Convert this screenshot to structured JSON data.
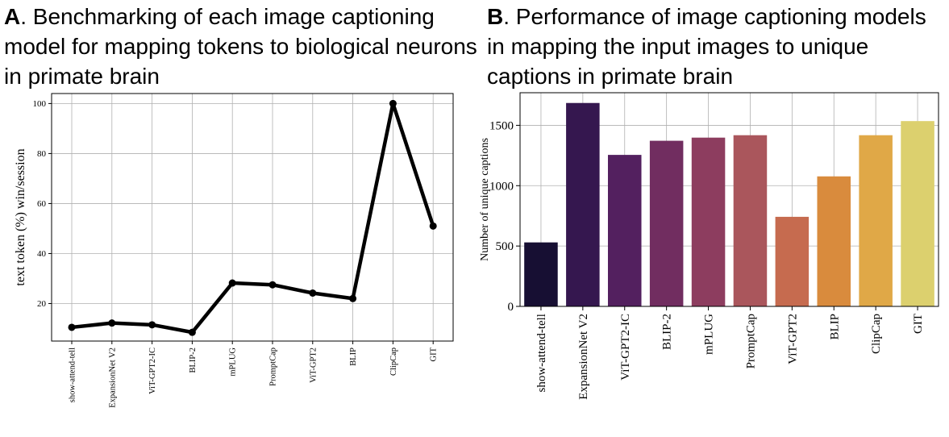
{
  "panel_a": {
    "letter": "A",
    "title": ". Benchmarking of each image captioning model for mapping tokens to biological neurons in primate brain"
  },
  "panel_b": {
    "letter": "B",
    "title": ". Performance of image captioning models in mapping the input images to unique captions in primate brain"
  },
  "chart_data": [
    {
      "type": "line",
      "categories": [
        "show-attend-tell",
        "ExpansionNet V2",
        "ViT-GPT2-IC",
        "BLIP-2",
        "mPLUG",
        "PromptCap",
        "ViT-GPT2",
        "BLIP",
        "ClipCap",
        "GIT"
      ],
      "values": [
        10.5,
        12.2,
        11.5,
        8.5,
        28.2,
        27.5,
        24.2,
        22.0,
        100,
        51
      ],
      "xlabel": "",
      "ylabel": "text token (%) win/session",
      "yticks": [
        20,
        40,
        60,
        80,
        100
      ],
      "ylim": [
        5,
        104
      ],
      "grid": true,
      "color": "#000000"
    },
    {
      "type": "bar",
      "categories": [
        "show-attend-tell",
        "ExpansionNet V2",
        "ViT-GPT2-IC",
        "BLIP-2",
        "mPLUG",
        "PromptCap",
        "ViT-GPT2",
        "BLIP",
        "ClipCap",
        "GIT"
      ],
      "values": [
        530,
        1685,
        1255,
        1372,
        1398,
        1418,
        742,
        1077,
        1418,
        1535
      ],
      "colors": [
        "#170f33",
        "#35174f",
        "#53205f",
        "#712d60",
        "#8d3d5f",
        "#aa565c",
        "#c66b4f",
        "#d98b3d",
        "#e0a847",
        "#dcd06e"
      ],
      "xlabel": "",
      "ylabel": "Number of unique captions",
      "yticks": [
        0,
        500,
        1000,
        1500
      ],
      "ylim": [
        0,
        1770
      ],
      "grid": true
    }
  ]
}
